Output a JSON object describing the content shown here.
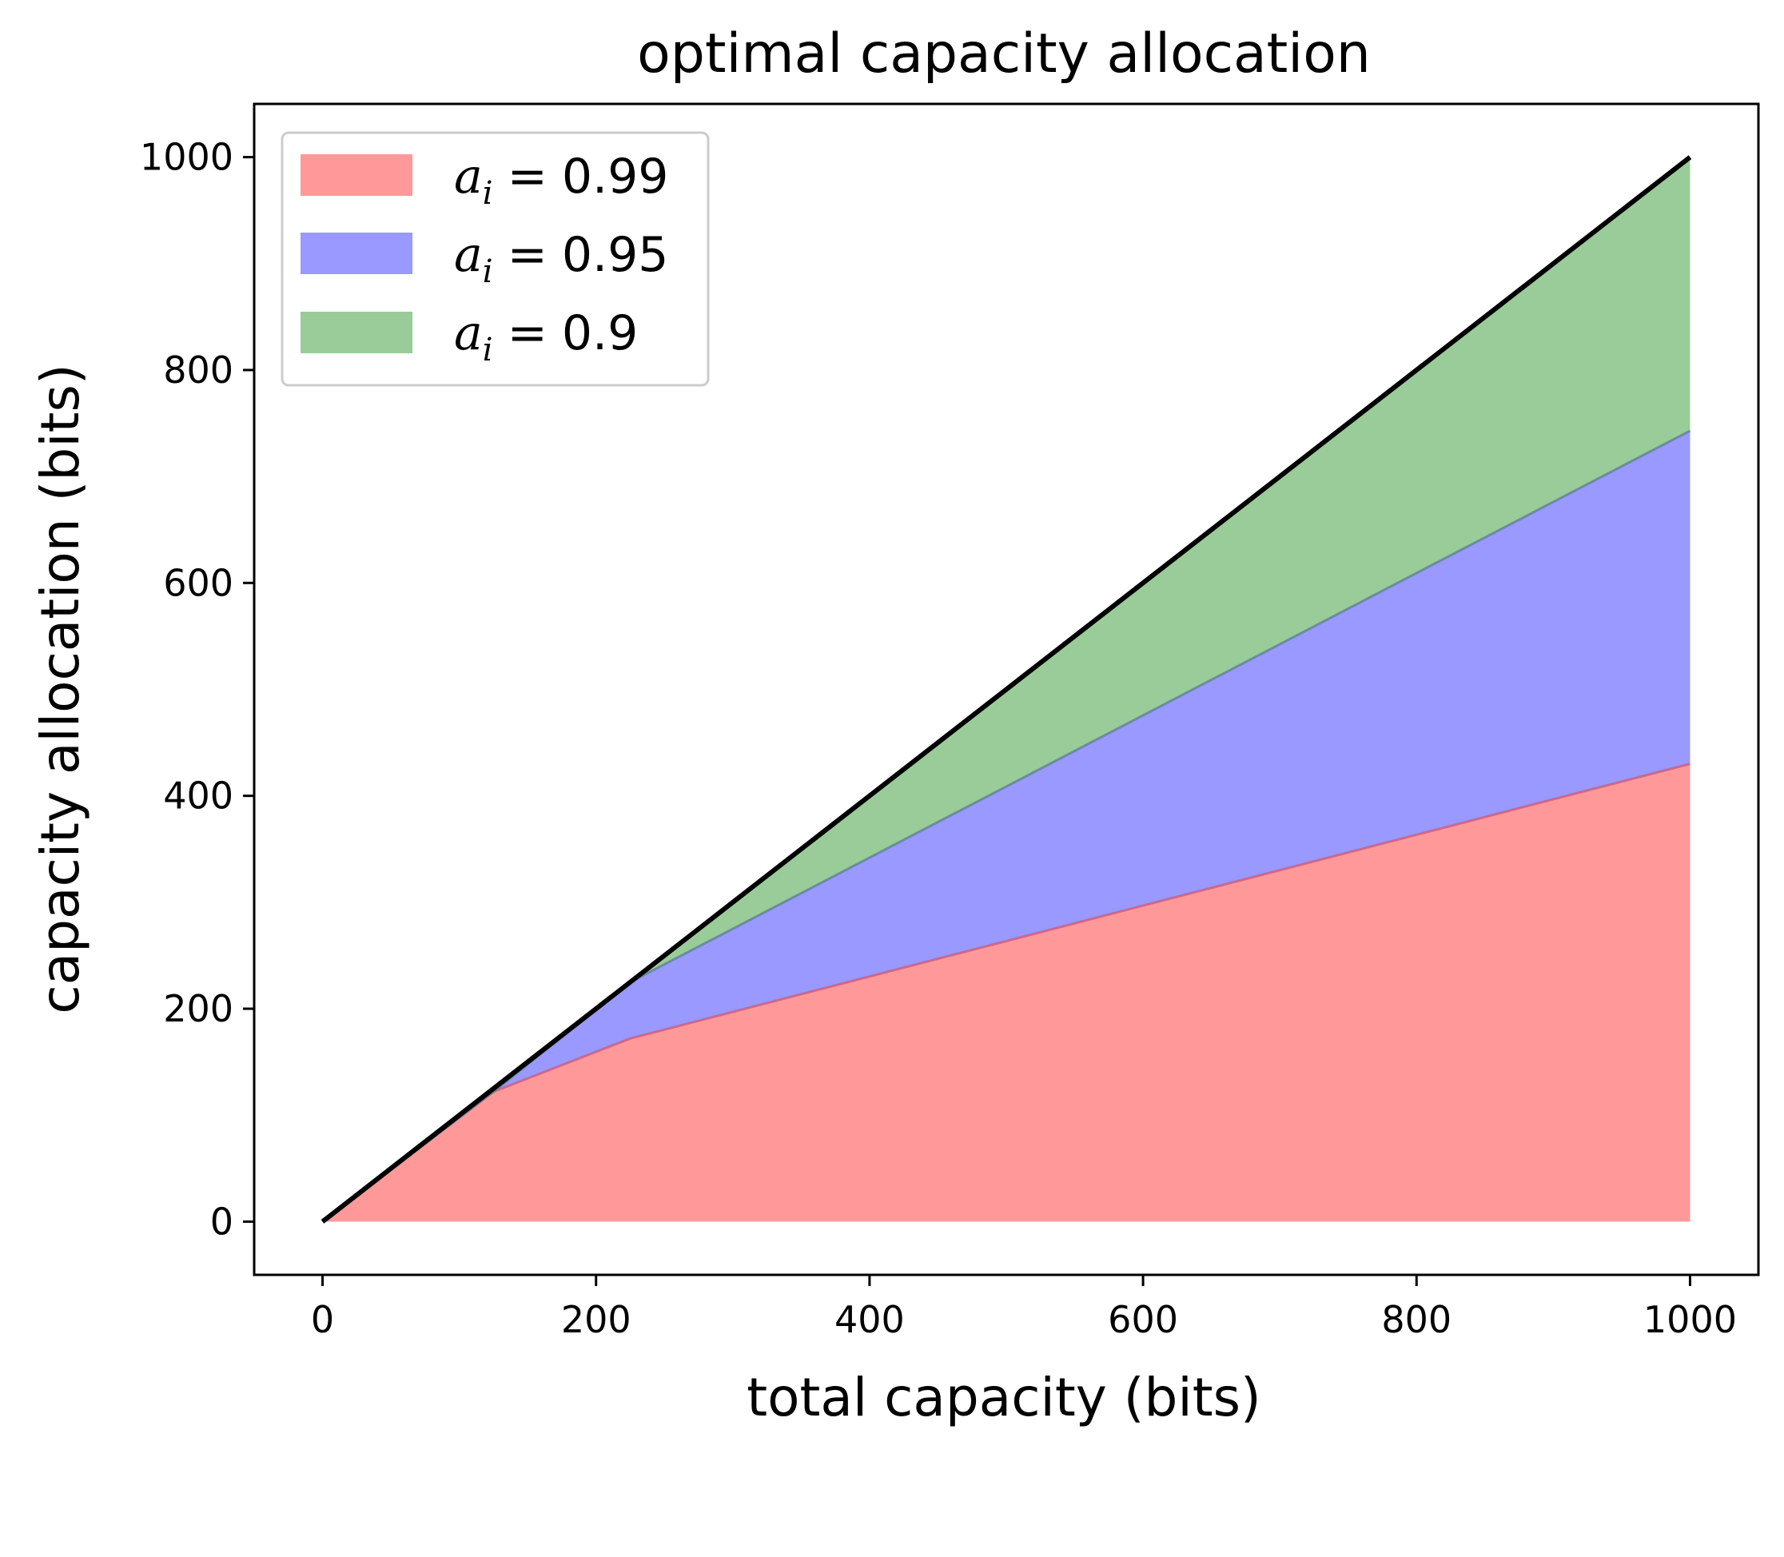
{
  "chart_data": {
    "type": "area",
    "stacked": true,
    "title": "optimal capacity allocation",
    "xlabel": "total capacity (bits)",
    "ylabel": "capacity allocation (bits)",
    "xlim": [
      -50,
      1050
    ],
    "ylim": [
      -50,
      1050
    ],
    "x_ticks": [
      0,
      200,
      400,
      600,
      800,
      1000
    ],
    "y_ticks": [
      0,
      200,
      400,
      600,
      800,
      1000
    ],
    "grid": false,
    "legend_position": "upper-left",
    "x": [
      0,
      125,
      225,
      1000
    ],
    "series": [
      {
        "label_var": "a",
        "label_sub": "i",
        "label_value": "0.99",
        "color": "#ff9999",
        "edge": "#cc5b7a",
        "values": [
          0,
          122,
          172,
          430
        ]
      },
      {
        "label_var": "a",
        "label_sub": "i",
        "label_value": "0.95",
        "color": "#9999ff",
        "edge": "#5f7f9a",
        "values": [
          0,
          0,
          53,
          313
        ]
      },
      {
        "label_var": "a",
        "label_sub": "i",
        "label_value": "0.9",
        "color": "#99cc99",
        "edge": "#5f7f9a",
        "values": [
          0,
          3,
          0,
          257
        ]
      }
    ],
    "total_line": {
      "color": "#000000",
      "x": [
        0,
        1000
      ],
      "y": [
        0,
        1000
      ]
    }
  }
}
